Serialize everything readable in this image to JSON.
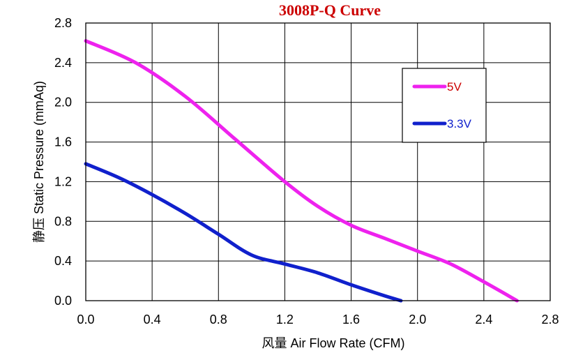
{
  "chart_data": {
    "type": "line",
    "title": "3008P-Q Curve",
    "title_color": "#cc0000",
    "xlabel": "风量 Air Flow Rate (CFM)",
    "ylabel": "静压  Static Pressure (mmAq)",
    "xlim": [
      0,
      2.8
    ],
    "ylim": [
      0,
      2.8
    ],
    "xticks": [
      0.0,
      0.4,
      0.8,
      1.2,
      1.6,
      2.0,
      2.4,
      2.8
    ],
    "yticks": [
      0.0,
      0.4,
      0.8,
      1.2,
      1.6,
      2.0,
      2.4,
      2.8
    ],
    "xtick_labels": [
      "0.0",
      "0.4",
      "0.8",
      "1.2",
      "1.6",
      "2.0",
      "2.4",
      "2.8"
    ],
    "ytick_labels": [
      "0.0",
      "0.4",
      "0.8",
      "1.2",
      "1.6",
      "2.0",
      "2.4",
      "2.8"
    ],
    "grid": true,
    "legend_position": "top-right",
    "series": [
      {
        "name": "5V",
        "color": "#ee22ee",
        "label_color": "#cc0000",
        "x": [
          0.0,
          0.3,
          0.6,
          0.9,
          1.2,
          1.4,
          1.6,
          1.8,
          2.0,
          2.2,
          2.4,
          2.6
        ],
        "y": [
          2.62,
          2.4,
          2.06,
          1.63,
          1.2,
          0.95,
          0.76,
          0.63,
          0.5,
          0.37,
          0.19,
          0.0
        ]
      },
      {
        "name": "3.3V",
        "color": "#1020cc",
        "label_color": "#1020cc",
        "x": [
          0.0,
          0.2,
          0.4,
          0.6,
          0.8,
          1.0,
          1.2,
          1.4,
          1.6,
          1.8,
          1.9
        ],
        "y": [
          1.38,
          1.24,
          1.07,
          0.88,
          0.67,
          0.46,
          0.37,
          0.28,
          0.16,
          0.05,
          0.0
        ]
      }
    ]
  }
}
